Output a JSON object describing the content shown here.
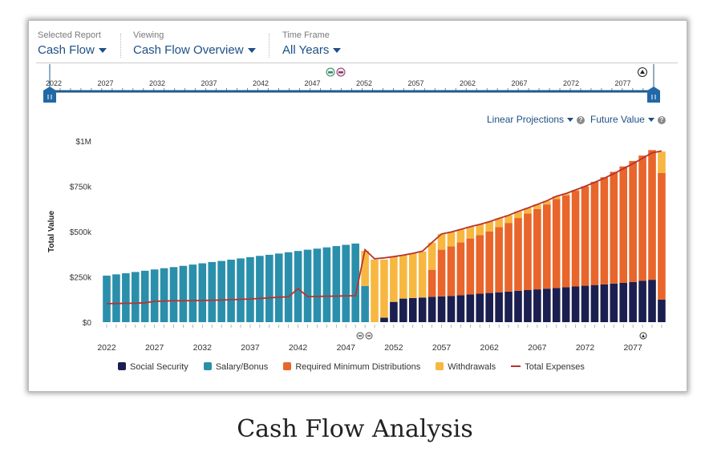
{
  "header": {
    "selected_report": {
      "label": "Selected Report",
      "value": "Cash Flow"
    },
    "viewing": {
      "label": "Viewing",
      "value": "Cash Flow Overview"
    },
    "time_frame": {
      "label": "Time Frame",
      "value": "All Years"
    }
  },
  "timeline": {
    "labels": [
      "2022",
      "2027",
      "2032",
      "2037",
      "2042",
      "2047",
      "2052",
      "2057",
      "2062",
      "2067",
      "2072",
      "2077"
    ]
  },
  "options": {
    "projections": "Linear Projections",
    "value_mode": "Future Value",
    "help": "?"
  },
  "caption": "Cash Flow Analysis",
  "colors": {
    "social_security": "#1b1f4f",
    "salary": "#2a8fab",
    "rmd": "#e8652b",
    "withdrawals": "#f7b740",
    "expenses": "#b8332e",
    "accent": "#1d4f86"
  },
  "chart_data": {
    "type": "bar",
    "stacked": true,
    "ylabel": "Total Value",
    "ylim": [
      0,
      1000000
    ],
    "yticks": [
      "$0",
      "$250k",
      "$500k",
      "$750k",
      "$1M"
    ],
    "xtick_labels": [
      "2022",
      "2027",
      "2032",
      "2037",
      "2042",
      "2047",
      "2052",
      "2057",
      "2062",
      "2067",
      "2072",
      "2077"
    ],
    "x_start": 2022,
    "x_end": 2080,
    "units": "thousands USD",
    "series": [
      {
        "name": "Social Security",
        "key": "social_security",
        "values": [
          0,
          0,
          0,
          0,
          0,
          0,
          0,
          0,
          0,
          0,
          0,
          0,
          0,
          0,
          0,
          0,
          0,
          0,
          0,
          0,
          0,
          0,
          0,
          0,
          0,
          0,
          0,
          0,
          0,
          25,
          112,
          130,
          133,
          136,
          140,
          142,
          145,
          149,
          153,
          157,
          161,
          165,
          169,
          173,
          177,
          181,
          185,
          189,
          193,
          197,
          201,
          205,
          209,
          213,
          217,
          222,
          228,
          234,
          124
        ]
      },
      {
        "name": "Salary/Bonus",
        "key": "salary",
        "values": [
          257,
          264,
          270,
          277,
          284,
          291,
          298,
          304,
          311,
          318,
          325,
          332,
          338,
          345,
          352,
          359,
          366,
          372,
          379,
          386,
          393,
          400,
          406,
          413,
          420,
          427,
          434,
          200,
          0,
          0,
          0,
          0,
          0,
          0,
          0,
          0,
          0,
          0,
          0,
          0,
          0,
          0,
          0,
          0,
          0,
          0,
          0,
          0,
          0,
          0,
          0,
          0,
          0,
          0,
          0,
          0,
          0,
          0,
          0
        ]
      },
      {
        "name": "Required Minimum Distributions",
        "key": "rmd",
        "values": [
          0,
          0,
          0,
          0,
          0,
          0,
          0,
          0,
          0,
          0,
          0,
          0,
          0,
          0,
          0,
          0,
          0,
          0,
          0,
          0,
          0,
          0,
          0,
          0,
          0,
          0,
          0,
          0,
          0,
          0,
          0,
          0,
          0,
          0,
          149,
          258,
          273,
          291,
          309,
          323,
          339,
          360,
          379,
          402,
          423,
          444,
          465,
          491,
          507,
          528,
          549,
          570,
          591,
          617,
          643,
          668,
          692,
          716,
          699
        ]
      },
      {
        "name": "Withdrawals",
        "key": "withdrawals",
        "values": [
          0,
          0,
          0,
          0,
          0,
          0,
          0,
          0,
          0,
          0,
          0,
          0,
          0,
          0,
          0,
          0,
          0,
          0,
          0,
          0,
          0,
          0,
          0,
          0,
          0,
          0,
          0,
          194,
          345,
          320,
          250,
          240,
          247,
          254,
          150,
          87,
          80,
          72,
          65,
          60,
          55,
          48,
          42,
          36,
          30,
          25,
          20,
          15,
          10,
          5,
          0,
          0,
          0,
          0,
          0,
          0,
          0,
          0,
          119
        ]
      },
      {
        "name": "Total Expenses",
        "key": "expenses",
        "type": "line",
        "values": [
          102,
          103,
          104,
          105,
          107,
          115,
          117,
          118,
          118,
          119,
          120,
          121,
          122,
          124,
          126,
          128,
          131,
          134,
          138,
          140,
          185,
          141,
          142,
          143,
          144,
          145,
          146,
          400,
          350,
          355,
          362,
          370,
          380,
          392,
          440,
          487,
          498,
          512,
          527,
          540,
          555,
          573,
          590,
          611,
          630,
          650,
          670,
          695,
          710,
          730,
          750,
          772,
          795,
          820,
          848,
          875,
          905,
          935,
          945
        ]
      }
    ],
    "legend_position": "bottom"
  }
}
